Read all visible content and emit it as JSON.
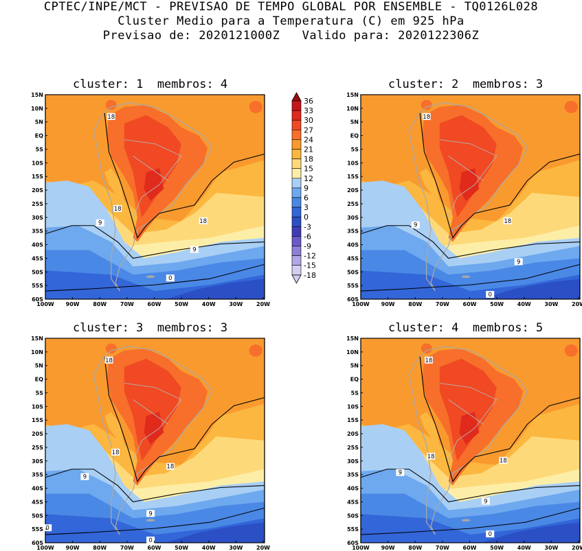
{
  "header": {
    "line1": "CPTEC/INPE/MCT - PREVISAO DE TEMPO GLOBAL POR ENSEMBLE - TQ0126L028",
    "line2": "Cluster Medio para a Temperatura (C) em 925 hPa",
    "line3": "Previsao de: 2020121000Z   Valido para: 2020122306Z"
  },
  "lat_ticks": [
    "15N",
    "10N",
    "5N",
    "EQ",
    "5S",
    "10S",
    "15S",
    "20S",
    "25S",
    "30S",
    "35S",
    "40S",
    "45S",
    "50S",
    "55S",
    "60S"
  ],
  "lon_ticks": [
    "100W",
    "90W",
    "80W",
    "70W",
    "60W",
    "50W",
    "40W",
    "30W",
    "20W"
  ],
  "colorbar": {
    "labels": [
      "36",
      "33",
      "30",
      "27",
      "24",
      "21",
      "18",
      "15",
      "12",
      "9",
      "6",
      "3",
      "0",
      "-3",
      "-6",
      "-9",
      "-12",
      "-15",
      "-18"
    ],
    "colors": [
      "#9b0e10",
      "#c4161c",
      "#e02a1c",
      "#f04923",
      "#f76f2a",
      "#f99a2f",
      "#fbb73f",
      "#fed97a",
      "#fdeea7",
      "#a9cff5",
      "#6ea8ee",
      "#4a88e6",
      "#3366d8",
      "#2b4fc4",
      "#3f3cb6",
      "#6a5ac9",
      "#8c7fd6",
      "#b1a7e4",
      "#d3cdf0"
    ]
  },
  "panels": [
    {
      "title": "cluster: 1  membros: 4",
      "contour_labels": [
        "18",
        "18",
        "18",
        "9",
        "9",
        "0"
      ]
    },
    {
      "title": "cluster: 2  membros: 3",
      "contour_labels": [
        "18",
        "18",
        "9",
        "9",
        "0"
      ]
    },
    {
      "title": "cluster: 3  membros: 3",
      "contour_labels": [
        "18",
        "18",
        "18",
        "9",
        "9",
        "0",
        "0"
      ]
    },
    {
      "title": "cluster: 4  membros: 5",
      "contour_labels": [
        "18",
        "18",
        "18",
        "9",
        "9",
        "0"
      ]
    }
  ]
}
